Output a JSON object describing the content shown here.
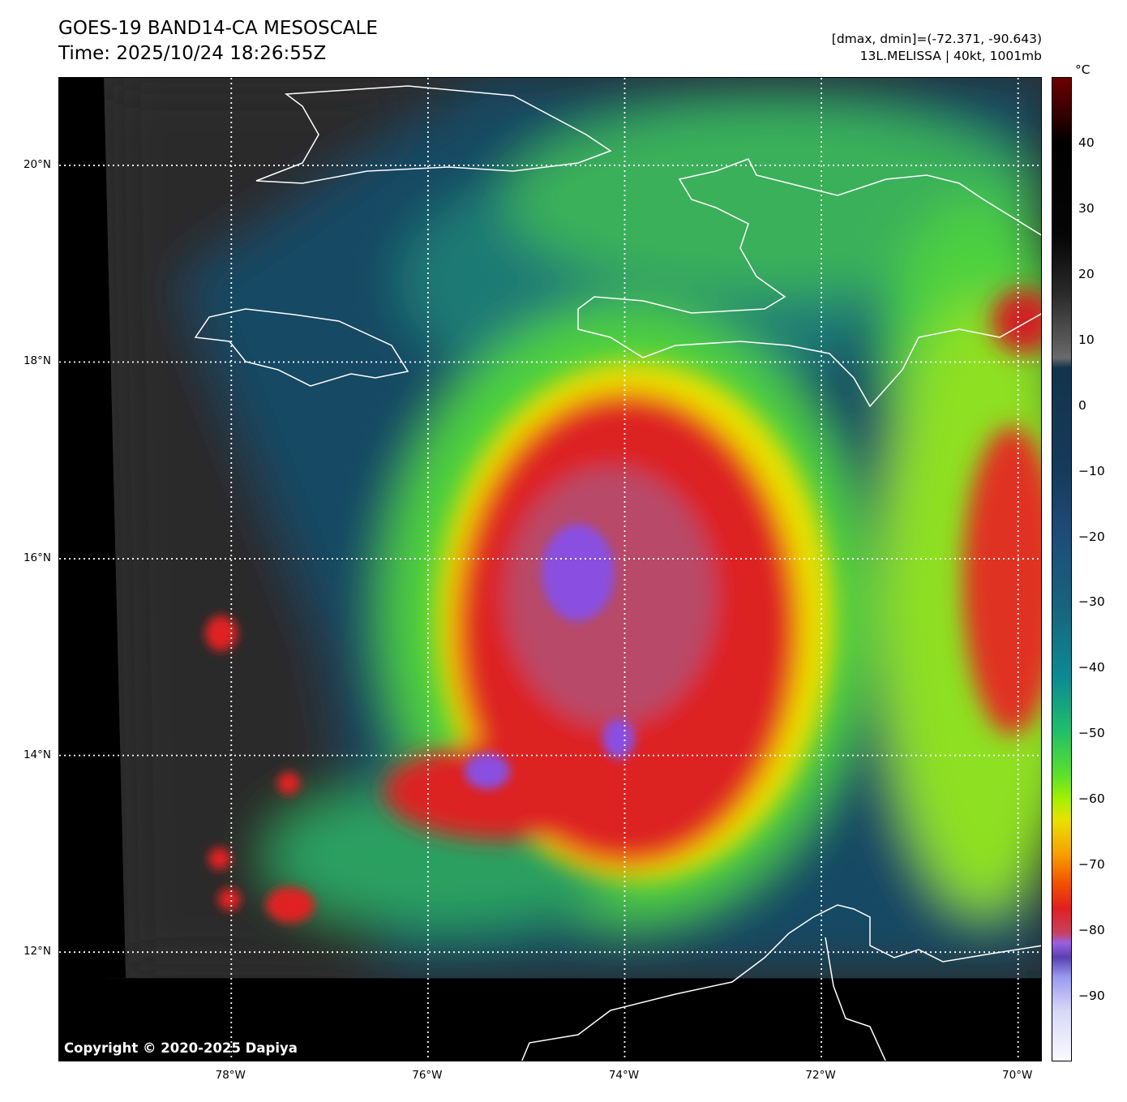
{
  "header": {
    "title": "GOES-19 BAND14-CA MESOSCALE",
    "time": "Time: 2025/10/24 18:26:55Z",
    "range": "[dmax, dmin]=(-72.371, -90.643)",
    "storm": "13L.MELISSA | 40kt, 1001mb"
  },
  "colorbar": {
    "unit": "°C",
    "min": -100,
    "max": 50,
    "ticks": [
      "40",
      "30",
      "20",
      "10",
      "0",
      "−10",
      "−20",
      "−30",
      "−40",
      "−50",
      "−60",
      "−70",
      "−80",
      "−90"
    ],
    "tick_values": [
      40,
      30,
      20,
      10,
      0,
      -10,
      -20,
      -30,
      -40,
      -50,
      -60,
      -70,
      -80,
      -90
    ]
  },
  "axes": {
    "lat_labels": [
      "20°N",
      "18°N",
      "16°N",
      "14°N",
      "12°N"
    ],
    "lat_values": [
      20,
      18,
      16,
      14,
      12
    ],
    "lon_labels": [
      "78°W",
      "76°W",
      "74°W",
      "72°W",
      "70°W"
    ],
    "lon_values": [
      -78,
      -76,
      -74,
      -72,
      -70
    ],
    "lon_range": [
      -79.75,
      -69.75
    ],
    "lat_range": [
      10.88,
      20.89
    ]
  },
  "copyright": "Copyright © 2020-2025 Dapiya"
}
